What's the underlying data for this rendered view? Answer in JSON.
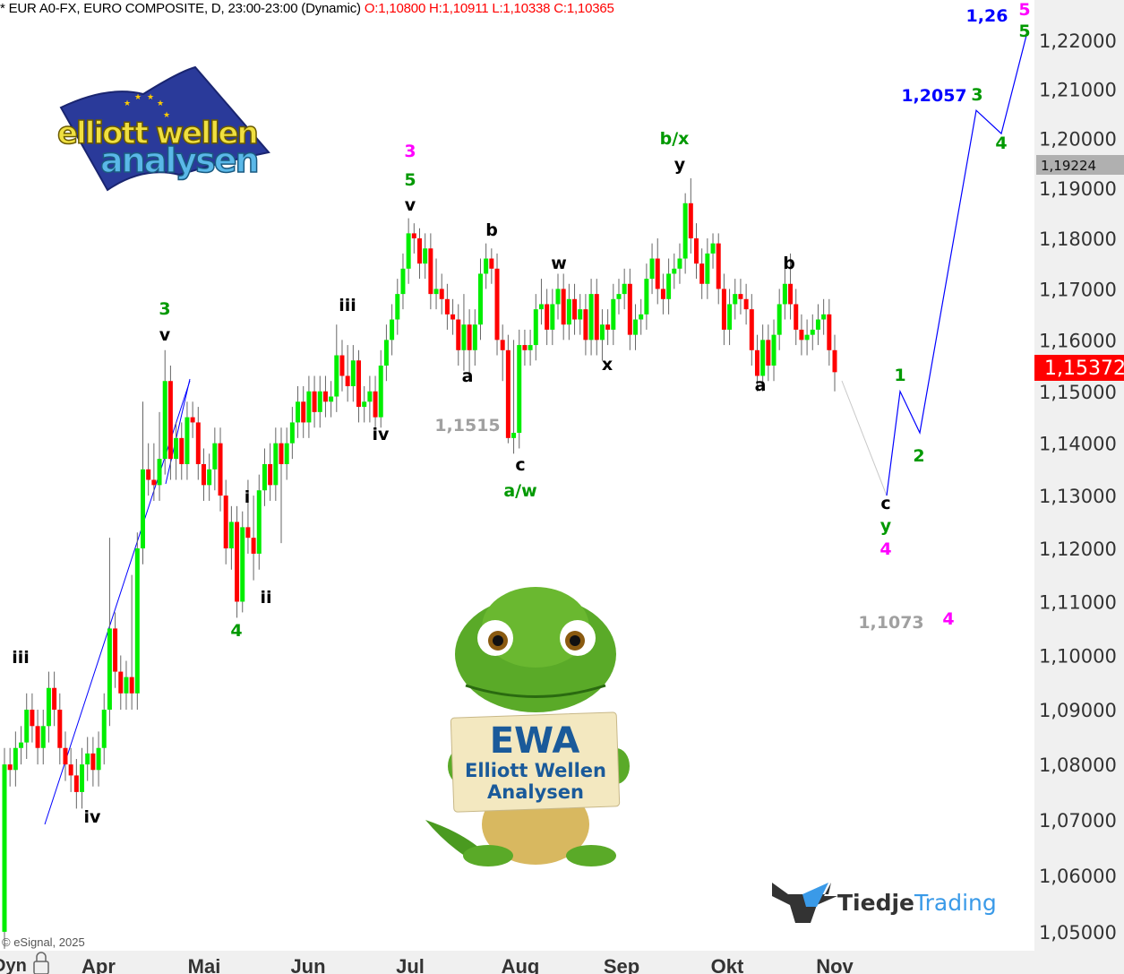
{
  "header": {
    "title": "* EUR A0-FX, EURO COMPOSITE, D, 23:00-23:00 (Dynamic)",
    "ohlc": "O:1,10800 H:1,10911 L:1,10338 C:1,10365"
  },
  "copyright": "© eSignal, 2025",
  "time_axis": {
    "mode_label": "Dyn",
    "lock_icon": "lock-icon"
  },
  "price_tags": {
    "high_tag": "1,19224",
    "high_tag_color": "#b0b0b0",
    "last_tag": "1,15372",
    "last_tag_color": "#ff0000"
  },
  "colors": {
    "up": "#00ee00",
    "down": "#ff0000",
    "wick": "#666666",
    "projection": "#0000ff",
    "background": "#ffffff",
    "axis_bg": "#f0f0f0"
  },
  "logo_elliott": {
    "text_line1": "elliott wellen",
    "text_line2": "analysen",
    "icon": "eu-flag-icon"
  },
  "mascot": {
    "sign_title": "EWA",
    "sign_line1": "Elliott Wellen",
    "sign_line2": "Analysen",
    "icon": "crocodile-mascot"
  },
  "logo_tiedje": {
    "part1": "Tiedje",
    "part2": "Trading",
    "icon": "bull-head-icon"
  },
  "wave_labels": [
    {
      "text": "iii",
      "color": "#000000"
    },
    {
      "text": "iv",
      "color": "#000000"
    },
    {
      "text": "3",
      "color": "#009900"
    },
    {
      "text": "v",
      "color": "#000000"
    },
    {
      "text": "4",
      "color": "#009900"
    },
    {
      "text": "i",
      "color": "#000000"
    },
    {
      "text": "ii",
      "color": "#000000"
    },
    {
      "text": "iii",
      "color": "#000000"
    },
    {
      "text": "iv",
      "color": "#000000"
    },
    {
      "text": "3",
      "color": "#ff00ff"
    },
    {
      "text": "5",
      "color": "#009900"
    },
    {
      "text": "v",
      "color": "#000000"
    },
    {
      "text": "b",
      "color": "#000000"
    },
    {
      "text": "a",
      "color": "#000000"
    },
    {
      "text": "1,1515",
      "color": "#a0a0a0"
    },
    {
      "text": "c",
      "color": "#000000"
    },
    {
      "text": "a/w",
      "color": "#009900"
    },
    {
      "text": "w",
      "color": "#000000"
    },
    {
      "text": "x",
      "color": "#000000"
    },
    {
      "text": "b/x",
      "color": "#009900"
    },
    {
      "text": "y",
      "color": "#000000"
    },
    {
      "text": "b",
      "color": "#000000"
    },
    {
      "text": "a",
      "color": "#000000"
    },
    {
      "text": "c",
      "color": "#000000"
    },
    {
      "text": "y",
      "color": "#009900"
    },
    {
      "text": "4",
      "color": "#ff00ff"
    },
    {
      "text": "1,1073",
      "color": "#a0a0a0"
    },
    {
      "text": "4",
      "color": "#ff00ff"
    },
    {
      "text": "1",
      "color": "#009900"
    },
    {
      "text": "2",
      "color": "#009900"
    },
    {
      "text": "1,2057",
      "color": "#0000ff"
    },
    {
      "text": "3",
      "color": "#009900"
    },
    {
      "text": "4",
      "color": "#009900"
    },
    {
      "text": "1,26",
      "color": "#0000ff"
    },
    {
      "text": "5",
      "color": "#ff00ff"
    },
    {
      "text": "5",
      "color": "#009900"
    }
  ],
  "chart_data": {
    "type": "candlestick",
    "title": "EUR A0-FX, EURO COMPOSITE, D",
    "y_scale": "log",
    "ylim": [
      1.045,
      1.225
    ],
    "grid": false,
    "y_ticks": [
      1.22,
      1.21,
      1.2,
      1.19,
      1.18,
      1.17,
      1.16,
      1.15,
      1.14,
      1.13,
      1.12,
      1.11,
      1.1,
      1.09,
      1.08,
      1.07,
      1.06,
      1.05
    ],
    "y_tick_labels": [
      "1,22000",
      "1,21000",
      "1,20000",
      "1,19000",
      "1,18000",
      "1,17000",
      "1,16000",
      "1,15000",
      "1,14000",
      "1,13000",
      "1,12000",
      "1,11000",
      "1,10000",
      "1,09000",
      "1,08000",
      "1,07000",
      "1,06000",
      "1,05000"
    ],
    "x_tick_labels": [
      "Apr",
      "Mai",
      "Jun",
      "Jul",
      "Aug",
      "Sep",
      "Okt",
      "Nov"
    ],
    "last_price": 1.15372,
    "marked_high": 1.19224,
    "candles": [
      [
        1.05,
        1.083,
        1.047,
        1.08
      ],
      [
        1.08,
        1.083,
        1.076,
        1.079
      ],
      [
        1.079,
        1.086,
        1.076,
        1.083
      ],
      [
        1.083,
        1.087,
        1.08,
        1.084
      ],
      [
        1.084,
        1.093,
        1.081,
        1.09
      ],
      [
        1.09,
        1.093,
        1.084,
        1.087
      ],
      [
        1.087,
        1.09,
        1.08,
        1.083
      ],
      [
        1.083,
        1.09,
        1.08,
        1.087
      ],
      [
        1.087,
        1.097,
        1.084,
        1.094
      ],
      [
        1.094,
        1.097,
        1.087,
        1.09
      ],
      [
        1.09,
        1.093,
        1.08,
        1.083
      ],
      [
        1.083,
        1.086,
        1.077,
        1.08
      ],
      [
        1.08,
        1.083,
        1.075,
        1.078
      ],
      [
        1.078,
        1.081,
        1.072,
        1.075
      ],
      [
        1.075,
        1.083,
        1.072,
        1.08
      ],
      [
        1.08,
        1.085,
        1.077,
        1.082
      ],
      [
        1.082,
        1.085,
        1.076,
        1.079
      ],
      [
        1.079,
        1.086,
        1.076,
        1.083
      ],
      [
        1.083,
        1.093,
        1.08,
        1.09
      ],
      [
        1.09,
        1.122,
        1.087,
        1.105
      ],
      [
        1.105,
        1.108,
        1.094,
        1.097
      ],
      [
        1.097,
        1.1,
        1.09,
        1.093
      ],
      [
        1.093,
        1.099,
        1.09,
        1.096
      ],
      [
        1.096,
        1.115,
        1.09,
        1.093
      ],
      [
        1.093,
        1.123,
        1.09,
        1.12
      ],
      [
        1.12,
        1.148,
        1.117,
        1.135
      ],
      [
        1.135,
        1.14,
        1.13,
        1.133
      ],
      [
        1.133,
        1.14,
        1.129,
        1.132
      ],
      [
        1.132,
        1.146,
        1.129,
        1.137
      ],
      [
        1.137,
        1.158,
        1.134,
        1.152
      ],
      [
        1.152,
        1.155,
        1.133,
        1.137
      ],
      [
        1.137,
        1.144,
        1.133,
        1.141
      ],
      [
        1.141,
        1.144,
        1.133,
        1.136
      ],
      [
        1.136,
        1.148,
        1.133,
        1.145
      ],
      [
        1.145,
        1.148,
        1.141,
        1.144
      ],
      [
        1.144,
        1.147,
        1.133,
        1.136
      ],
      [
        1.136,
        1.139,
        1.129,
        1.132
      ],
      [
        1.132,
        1.138,
        1.129,
        1.135
      ],
      [
        1.135,
        1.143,
        1.131,
        1.14
      ],
      [
        1.14,
        1.143,
        1.127,
        1.13
      ],
      [
        1.13,
        1.133,
        1.117,
        1.12
      ],
      [
        1.12,
        1.128,
        1.116,
        1.125
      ],
      [
        1.125,
        1.128,
        1.107,
        1.11
      ],
      [
        1.11,
        1.127,
        1.108,
        1.124
      ],
      [
        1.124,
        1.133,
        1.119,
        1.122
      ],
      [
        1.122,
        1.13,
        1.114,
        1.119
      ],
      [
        1.119,
        1.134,
        1.116,
        1.131
      ],
      [
        1.131,
        1.139,
        1.128,
        1.136
      ],
      [
        1.136,
        1.14,
        1.129,
        1.132
      ],
      [
        1.132,
        1.143,
        1.129,
        1.14
      ],
      [
        1.14,
        1.143,
        1.121,
        1.136
      ],
      [
        1.136,
        1.143,
        1.133,
        1.14
      ],
      [
        1.14,
        1.147,
        1.137,
        1.144
      ],
      [
        1.144,
        1.151,
        1.141,
        1.148
      ],
      [
        1.148,
        1.151,
        1.141,
        1.144
      ],
      [
        1.144,
        1.153,
        1.141,
        1.15
      ],
      [
        1.15,
        1.153,
        1.143,
        1.146
      ],
      [
        1.146,
        1.153,
        1.143,
        1.15
      ],
      [
        1.15,
        1.153,
        1.145,
        1.148
      ],
      [
        1.148,
        1.152,
        1.145,
        1.149
      ],
      [
        1.149,
        1.163,
        1.146,
        1.157
      ],
      [
        1.157,
        1.16,
        1.15,
        1.153
      ],
      [
        1.153,
        1.159,
        1.148,
        1.151
      ],
      [
        1.151,
        1.159,
        1.148,
        1.156
      ],
      [
        1.156,
        1.158,
        1.144,
        1.147
      ],
      [
        1.147,
        1.151,
        1.144,
        1.148
      ],
      [
        1.148,
        1.153,
        1.144,
        1.15
      ],
      [
        1.15,
        1.153,
        1.143,
        1.145
      ],
      [
        1.145,
        1.158,
        1.143,
        1.155
      ],
      [
        1.155,
        1.163,
        1.152,
        1.16
      ],
      [
        1.16,
        1.167,
        1.157,
        1.164
      ],
      [
        1.164,
        1.172,
        1.161,
        1.169
      ],
      [
        1.169,
        1.177,
        1.166,
        1.174
      ],
      [
        1.174,
        1.184,
        1.171,
        1.181
      ],
      [
        1.181,
        1.183,
        1.177,
        1.18
      ],
      [
        1.18,
        1.182,
        1.172,
        1.175
      ],
      [
        1.175,
        1.181,
        1.172,
        1.178
      ],
      [
        1.178,
        1.181,
        1.166,
        1.169
      ],
      [
        1.169,
        1.176,
        1.166,
        1.17
      ],
      [
        1.17,
        1.173,
        1.165,
        1.168
      ],
      [
        1.168,
        1.171,
        1.162,
        1.165
      ],
      [
        1.165,
        1.168,
        1.161,
        1.164
      ],
      [
        1.164,
        1.167,
        1.155,
        1.158
      ],
      [
        1.158,
        1.169,
        1.154,
        1.163
      ],
      [
        1.163,
        1.166,
        1.153,
        1.158
      ],
      [
        1.158,
        1.166,
        1.155,
        1.163
      ],
      [
        1.163,
        1.176,
        1.16,
        1.173
      ],
      [
        1.173,
        1.179,
        1.17,
        1.176
      ],
      [
        1.176,
        1.178,
        1.171,
        1.174
      ],
      [
        1.174,
        1.177,
        1.157,
        1.16
      ],
      [
        1.16,
        1.163,
        1.152,
        1.158
      ],
      [
        1.158,
        1.161,
        1.14,
        1.141
      ],
      [
        1.141,
        1.16,
        1.138,
        1.142
      ],
      [
        1.142,
        1.162,
        1.139,
        1.159
      ],
      [
        1.159,
        1.162,
        1.155,
        1.158
      ],
      [
        1.158,
        1.162,
        1.155,
        1.159
      ],
      [
        1.159,
        1.169,
        1.156,
        1.166
      ],
      [
        1.166,
        1.172,
        1.163,
        1.167
      ],
      [
        1.167,
        1.17,
        1.159,
        1.162
      ],
      [
        1.162,
        1.17,
        1.159,
        1.167
      ],
      [
        1.167,
        1.173,
        1.164,
        1.17
      ],
      [
        1.17,
        1.173,
        1.16,
        1.163
      ],
      [
        1.163,
        1.171,
        1.16,
        1.168
      ],
      [
        1.168,
        1.171,
        1.161,
        1.164
      ],
      [
        1.164,
        1.169,
        1.161,
        1.166
      ],
      [
        1.166,
        1.169,
        1.157,
        1.16
      ],
      [
        1.16,
        1.172,
        1.157,
        1.169
      ],
      [
        1.169,
        1.172,
        1.157,
        1.16
      ],
      [
        1.16,
        1.166,
        1.156,
        1.163
      ],
      [
        1.163,
        1.166,
        1.159,
        1.162
      ],
      [
        1.162,
        1.171,
        1.159,
        1.168
      ],
      [
        1.168,
        1.172,
        1.165,
        1.169
      ],
      [
        1.169,
        1.174,
        1.166,
        1.171
      ],
      [
        1.171,
        1.174,
        1.158,
        1.161
      ],
      [
        1.161,
        1.167,
        1.158,
        1.164
      ],
      [
        1.164,
        1.168,
        1.161,
        1.165
      ],
      [
        1.165,
        1.175,
        1.162,
        1.172
      ],
      [
        1.172,
        1.179,
        1.169,
        1.176
      ],
      [
        1.176,
        1.18,
        1.167,
        1.17
      ],
      [
        1.17,
        1.173,
        1.165,
        1.168
      ],
      [
        1.168,
        1.176,
        1.165,
        1.173
      ],
      [
        1.173,
        1.177,
        1.17,
        1.174
      ],
      [
        1.174,
        1.179,
        1.171,
        1.176
      ],
      [
        1.176,
        1.189,
        1.173,
        1.187
      ],
      [
        1.187,
        1.192,
        1.177,
        1.18
      ],
      [
        1.18,
        1.183,
        1.172,
        1.175
      ],
      [
        1.175,
        1.178,
        1.168,
        1.171
      ],
      [
        1.171,
        1.18,
        1.168,
        1.177
      ],
      [
        1.177,
        1.181,
        1.174,
        1.179
      ],
      [
        1.179,
        1.181,
        1.167,
        1.17
      ],
      [
        1.17,
        1.173,
        1.159,
        1.162
      ],
      [
        1.162,
        1.17,
        1.159,
        1.167
      ],
      [
        1.167,
        1.172,
        1.164,
        1.169
      ],
      [
        1.169,
        1.172,
        1.165,
        1.168
      ],
      [
        1.168,
        1.171,
        1.163,
        1.166
      ],
      [
        1.166,
        1.169,
        1.155,
        1.158
      ],
      [
        1.158,
        1.161,
        1.15,
        1.153
      ],
      [
        1.153,
        1.163,
        1.15,
        1.16
      ],
      [
        1.16,
        1.163,
        1.152,
        1.155
      ],
      [
        1.155,
        1.164,
        1.152,
        1.161
      ],
      [
        1.161,
        1.17,
        1.158,
        1.167
      ],
      [
        1.167,
        1.174,
        1.164,
        1.171
      ],
      [
        1.171,
        1.177,
        1.164,
        1.167
      ],
      [
        1.167,
        1.17,
        1.159,
        1.162
      ],
      [
        1.162,
        1.165,
        1.157,
        1.16
      ],
      [
        1.16,
        1.164,
        1.157,
        1.161
      ],
      [
        1.161,
        1.165,
        1.158,
        1.162
      ],
      [
        1.162,
        1.167,
        1.159,
        1.164
      ],
      [
        1.164,
        1.168,
        1.161,
        1.165
      ],
      [
        1.165,
        1.168,
        1.155,
        1.158
      ],
      [
        1.158,
        1.161,
        1.15,
        1.15372
      ]
    ],
    "projection_path": [
      1.1537,
      1.13,
      1.15,
      1.142,
      1.2057,
      1.201,
      1.221
    ],
    "trendlines": "blue"
  }
}
